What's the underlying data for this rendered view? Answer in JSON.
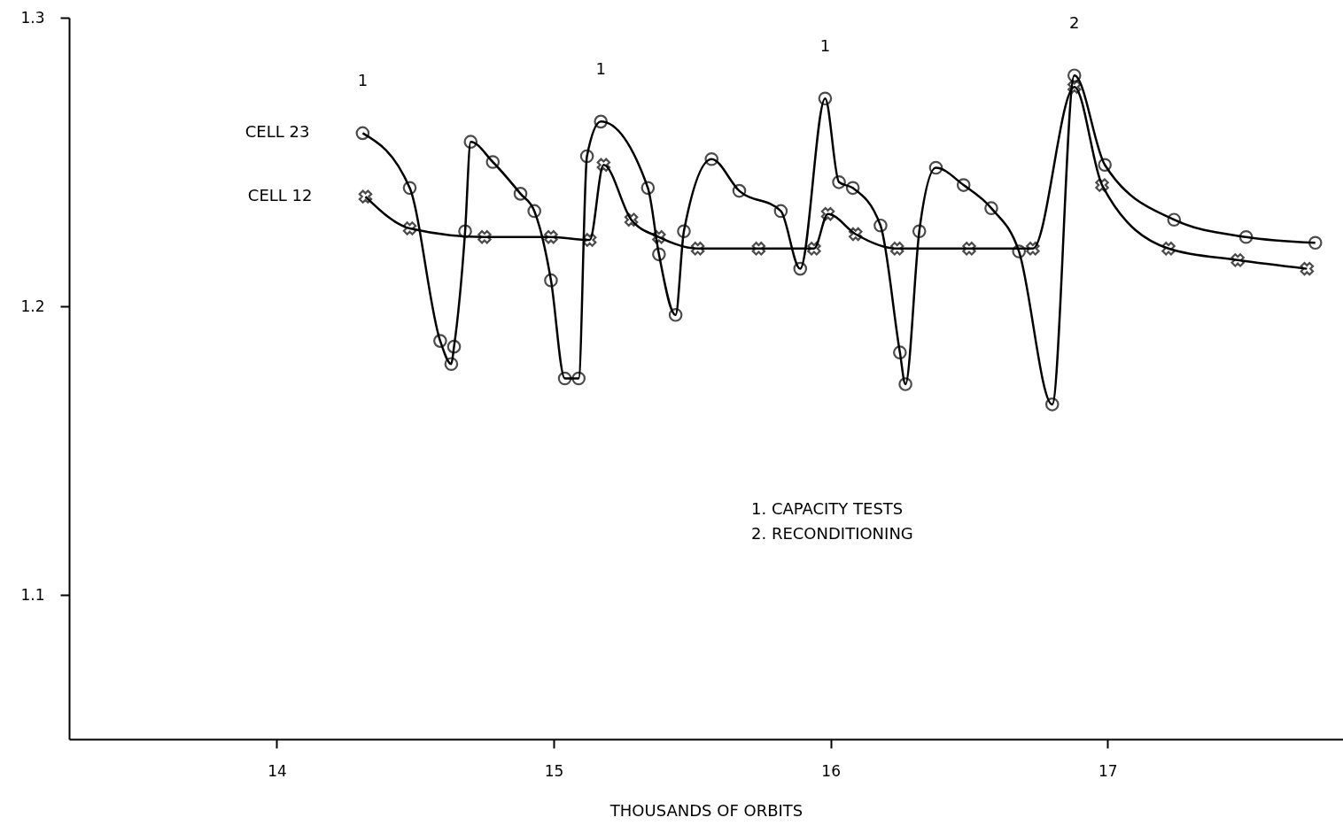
{
  "chart_data": {
    "type": "line",
    "xlabel": "THOUSANDS OF ORBITS",
    "xlim": [
      13.25,
      17.85
    ],
    "xticks": [
      14,
      15,
      16,
      17
    ],
    "ylim": [
      1.05,
      1.3
    ],
    "yticks": [
      1.1,
      1.2,
      1.3
    ],
    "grid": false,
    "legend": false,
    "line_style": "solid",
    "series": [
      {
        "name": "CELL 23",
        "color": "#000000",
        "marker": "circle",
        "x": [
          14.31,
          14.48,
          14.59,
          14.63,
          14.64,
          14.68,
          14.7,
          14.78,
          14.88,
          14.93,
          14.99,
          15.04,
          15.09,
          15.12,
          15.17,
          15.34,
          15.38,
          15.44,
          15.47,
          15.57,
          15.67,
          15.82,
          15.89,
          15.98,
          16.03,
          16.08,
          16.18,
          16.25,
          16.27,
          16.32,
          16.38,
          16.48,
          16.58,
          16.68,
          16.8,
          16.88,
          16.99,
          17.24,
          17.5,
          17.75
        ],
        "values": [
          1.26,
          1.241,
          1.188,
          1.18,
          1.186,
          1.226,
          1.257,
          1.25,
          1.239,
          1.233,
          1.209,
          1.175,
          1.175,
          1.252,
          1.264,
          1.241,
          1.218,
          1.197,
          1.226,
          1.251,
          1.24,
          1.233,
          1.213,
          1.272,
          1.243,
          1.241,
          1.228,
          1.184,
          1.173,
          1.226,
          1.248,
          1.242,
          1.234,
          1.219,
          1.166,
          1.28,
          1.249,
          1.23,
          1.224,
          1.222
        ]
      },
      {
        "name": "CELL 12",
        "color": "#000000",
        "marker": "cross",
        "x": [
          14.32,
          14.48,
          14.75,
          14.99,
          15.13,
          15.18,
          15.28,
          15.38,
          15.52,
          15.74,
          15.94,
          15.99,
          16.09,
          16.24,
          16.5,
          16.73,
          16.88,
          16.98,
          17.22,
          17.47,
          17.72
        ],
        "values": [
          1.238,
          1.227,
          1.224,
          1.224,
          1.223,
          1.249,
          1.23,
          1.224,
          1.22,
          1.22,
          1.22,
          1.232,
          1.225,
          1.22,
          1.22,
          1.22,
          1.276,
          1.242,
          1.22,
          1.216,
          1.213
        ]
      }
    ],
    "annotations": [
      {
        "text": "1",
        "x": 14.31,
        "y": 1.26
      },
      {
        "text": "1",
        "x": 15.17,
        "y": 1.264
      },
      {
        "text": "1",
        "x": 15.98,
        "y": 1.272
      },
      {
        "text": "2",
        "x": 16.88,
        "y": 1.28
      },
      "1. CAPACITY TESTS",
      "2. RECONDITIONING"
    ]
  }
}
